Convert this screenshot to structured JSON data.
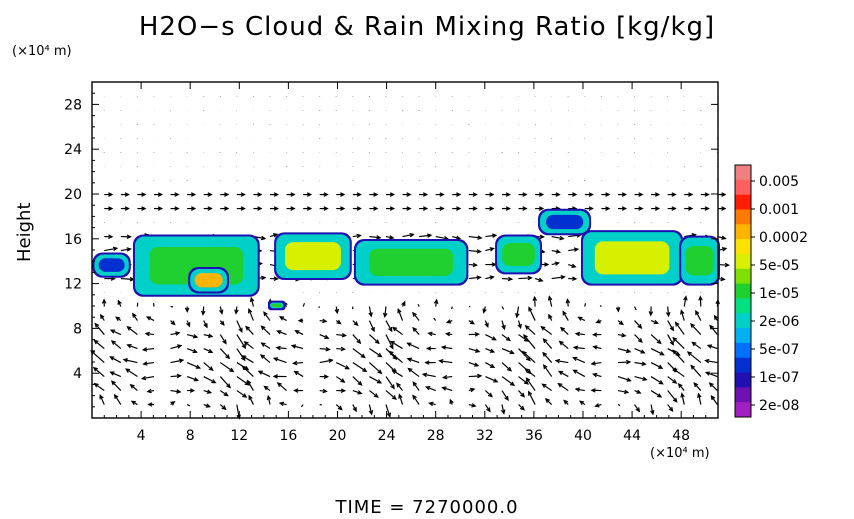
{
  "chart_data": {
    "type": "heatmap",
    "title": "H2O−s Cloud & Rain Mixing Ratio [kg/kg]",
    "ylabel": "Height",
    "x_unit": "(×10⁴ m)",
    "y_unit": "(×10⁴ m)",
    "xlim": [
      0,
      51
    ],
    "ylim": [
      0,
      30
    ],
    "x_ticks": [
      4,
      8,
      12,
      16,
      20,
      24,
      28,
      32,
      36,
      40,
      44,
      48
    ],
    "y_ticks": [
      4,
      8,
      12,
      16,
      20,
      24,
      28
    ],
    "colorbar": {
      "labels": [
        "0.005",
        "0.001",
        "0.0002",
        "5e-05",
        "1e-05",
        "2e-06",
        "5e-07",
        "1e-07",
        "2e-08"
      ],
      "colors": [
        "#f08080",
        "#ff6060",
        "#ff1e00",
        "#ff7a00",
        "#ffb400",
        "#ffe100",
        "#d6f000",
        "#7fe000",
        "#20d030",
        "#00e080",
        "#00d0c8",
        "#00b0f0",
        "#0070ff",
        "#0030d0",
        "#2010b0",
        "#7010b0",
        "#a020c0"
      ]
    },
    "cloud_layer": {
      "base": 12,
      "top": 16,
      "extent_x": [
        0,
        51
      ]
    },
    "cloud_patches": [
      {
        "x": [
          0.2,
          3
        ],
        "y": [
          12.7,
          14.6
        ],
        "level": "1e-07"
      },
      {
        "x": [
          3.5,
          13.5
        ],
        "y": [
          11,
          16.2
        ],
        "level": "1e-05"
      },
      {
        "x": [
          8,
          11
        ],
        "y": [
          11.3,
          13.3
        ],
        "level": "0.0002"
      },
      {
        "x": [
          15,
          21
        ],
        "y": [
          12.5,
          16.4
        ],
        "level": "5e-05"
      },
      {
        "x": [
          21.5,
          30.5
        ],
        "y": [
          12,
          15.8
        ],
        "level": "1e-05"
      },
      {
        "x": [
          33,
          36.5
        ],
        "y": [
          13,
          16.2
        ],
        "level": "1e-05"
      },
      {
        "x": [
          36.5,
          40.5
        ],
        "y": [
          16.5,
          18.5
        ],
        "level": "1e-07"
      },
      {
        "x": [
          40,
          48
        ],
        "y": [
          12,
          16.6
        ],
        "level": "5e-05"
      },
      {
        "x": [
          48,
          51
        ],
        "y": [
          12,
          16.1
        ],
        "level": "1e-05"
      },
      {
        "x": [
          14.5,
          15.6
        ],
        "y": [
          9.8,
          10.3
        ],
        "level": "1e-05"
      }
    ],
    "wind_vectors": "sparse arrows, strong circulations below 10 and along 12–16, weak near 19"
  },
  "footer": {
    "time_label": "TIME  =  7270000.0"
  }
}
